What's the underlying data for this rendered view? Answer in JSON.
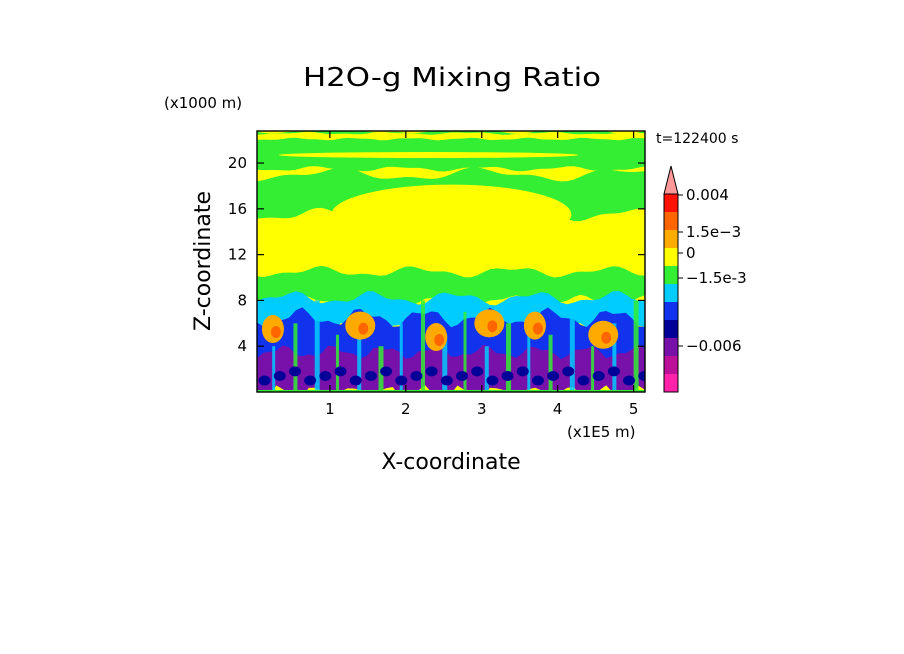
{
  "chart_data": {
    "type": "heatmap",
    "title": "H2O-g Mixing Ratio",
    "xlabel": "X-coordinate",
    "ylabel": "Z-coordinate",
    "x_scale_label": "(x1E5 m)",
    "y_scale_label": "(x1000 m)",
    "time_label": "t=122400 s",
    "xlim": [
      0.04,
      5.15
    ],
    "ylim": [
      0,
      22.8
    ],
    "xticks": [
      1,
      2,
      3,
      4,
      5
    ],
    "yticks": [
      4,
      8,
      12,
      16,
      20
    ],
    "grid": false,
    "colorbar": {
      "position": "right",
      "levels": [
        {
          "color": "#ff22aa"
        },
        {
          "color": "#bb1199"
        },
        {
          "color": "#7711aa"
        },
        {
          "color": "#000099"
        },
        {
          "color": "#1133ee"
        },
        {
          "color": "#00ccff"
        },
        {
          "color": "#33ee33"
        },
        {
          "color": "#ffff00"
        },
        {
          "color": "#ffaa00"
        },
        {
          "color": "#ff6600"
        },
        {
          "color": "#ff1100"
        },
        {
          "color": "#ff9999"
        }
      ],
      "labels": [
        {
          "text": "0.004",
          "value": 0.004
        },
        {
          "text": "1.5e-3",
          "value": 0.0015
        },
        {
          "text": "0",
          "value": 0
        },
        {
          "text": "-1.5e-3",
          "value": -0.0015
        },
        {
          "text": "-0.006",
          "value": -0.006
        }
      ]
    },
    "bands": [
      {
        "name": "top-green",
        "z_bottom": 19.5,
        "z_top": 22.8,
        "color": "#33ee33"
      },
      {
        "name": "yellow-top-strip",
        "z_bottom": 22.1,
        "z_top": 22.6,
        "color": "#ffff00"
      },
      {
        "name": "upper-green",
        "z_bottom": 15.5,
        "z_top": 19.0,
        "color": "#33ee33"
      },
      {
        "name": "yellow-mid",
        "z_bottom": 10.0,
        "z_top": 19.5,
        "color": "#ffff00"
      },
      {
        "name": "lower-green",
        "z_bottom": 8.0,
        "z_top": 10.5,
        "color": "#33ee33"
      },
      {
        "name": "cyan",
        "z_bottom": 5.5,
        "z_top": 8.2,
        "color": "#00ccff"
      },
      {
        "name": "blue",
        "z_bottom": 2.0,
        "z_top": 6.5,
        "color": "#1133ee"
      },
      {
        "name": "purple",
        "z_bottom": 0,
        "z_top": 3.5,
        "color": "#7711aa"
      }
    ],
    "orange_cells": [
      {
        "x": 0.25,
        "z": 5.5
      },
      {
        "x": 1.4,
        "z": 5.8
      },
      {
        "x": 2.4,
        "z": 4.8
      },
      {
        "x": 3.1,
        "z": 6.0
      },
      {
        "x": 3.7,
        "z": 5.8
      },
      {
        "x": 4.6,
        "z": 5.0
      }
    ]
  }
}
